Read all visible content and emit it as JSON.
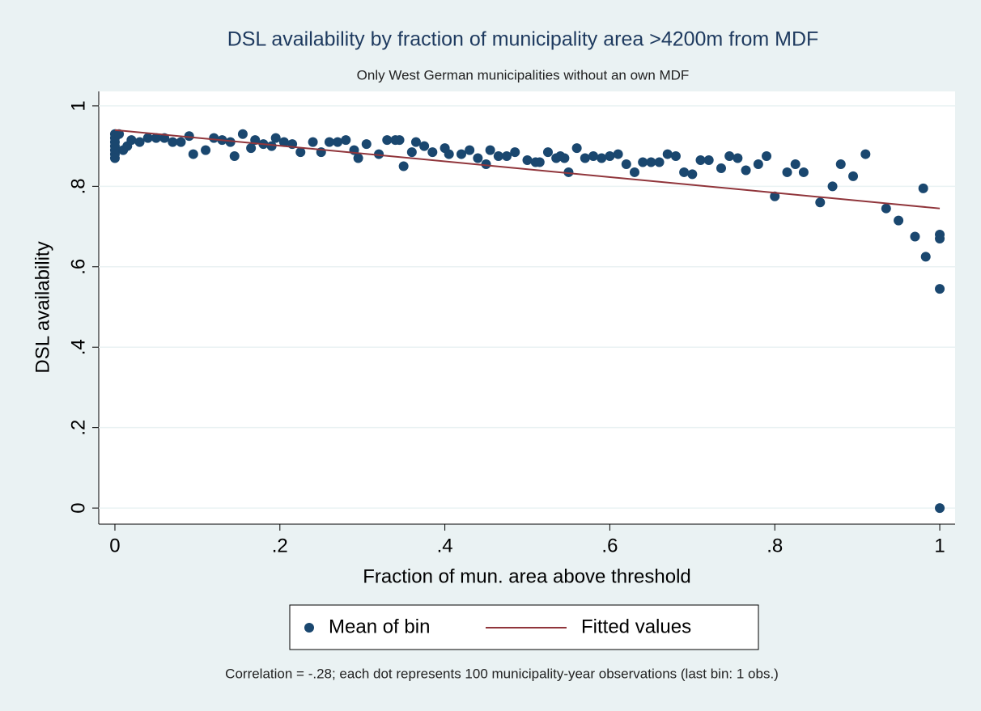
{
  "chart_data": {
    "type": "scatter",
    "title": "DSL availability by fraction of municipality area >4200m from MDF",
    "subtitle": "Only West German municipalities without an own MDF",
    "xlabel": "Fraction of mun. area above threshold",
    "ylabel": "DSL availability",
    "note": "Correlation = -.28; each dot represents 100 municipality-year observations (last bin: 1 obs.)",
    "xlim": [
      -0.0196,
      1.0186
    ],
    "ylim": [
      -0.04,
      1.036
    ],
    "xticks": [
      0,
      {
        "value": 0.2,
        "label": ".2"
      },
      {
        "value": 0.4,
        "label": ".4"
      },
      {
        "value": 0.6,
        "label": ".6"
      },
      {
        "value": 0.8,
        "label": ".8"
      },
      1
    ],
    "yticks": [
      0,
      {
        "value": 0.2,
        "label": ".2"
      },
      {
        "value": 0.4,
        "label": ".4"
      },
      {
        "value": 0.6,
        "label": ".6"
      },
      {
        "value": 0.8,
        "label": ".8"
      },
      1
    ],
    "grid": true,
    "legend": "bottom",
    "series": [
      {
        "name": "Mean of bin",
        "type": "scatter",
        "color": "#1a476f",
        "x": [
          0,
          0,
          0,
          0,
          0,
          0,
          0,
          0.005,
          0.01,
          0.015,
          0.02,
          0.03,
          0.04,
          0.05,
          0.06,
          0.07,
          0.08,
          0.09,
          0.095,
          0.11,
          0.12,
          0.13,
          0.14,
          0.145,
          0.155,
          0.165,
          0.17,
          0.18,
          0.19,
          0.195,
          0.205,
          0.215,
          0.225,
          0.24,
          0.25,
          0.26,
          0.27,
          0.28,
          0.29,
          0.295,
          0.305,
          0.32,
          0.33,
          0.34,
          0.345,
          0.35,
          0.36,
          0.365,
          0.375,
          0.385,
          0.4,
          0.405,
          0.42,
          0.43,
          0.44,
          0.45,
          0.455,
          0.465,
          0.475,
          0.485,
          0.5,
          0.51,
          0.515,
          0.525,
          0.535,
          0.54,
          0.545,
          0.55,
          0.56,
          0.57,
          0.58,
          0.59,
          0.6,
          0.61,
          0.62,
          0.63,
          0.64,
          0.65,
          0.66,
          0.67,
          0.68,
          0.69,
          0.7,
          0.71,
          0.72,
          0.735,
          0.745,
          0.755,
          0.765,
          0.78,
          0.79,
          0.8,
          0.815,
          0.825,
          0.835,
          0.855,
          0.87,
          0.88,
          0.895,
          0.91,
          0.935,
          0.95,
          0.97,
          0.98,
          0.983,
          1,
          1,
          1,
          1
        ],
        "values": [
          0.93,
          0.92,
          0.91,
          0.9,
          0.89,
          0.88,
          0.87,
          0.93,
          0.89,
          0.9,
          0.915,
          0.91,
          0.92,
          0.92,
          0.92,
          0.91,
          0.91,
          0.925,
          0.88,
          0.89,
          0.92,
          0.915,
          0.91,
          0.875,
          0.93,
          0.895,
          0.915,
          0.905,
          0.9,
          0.92,
          0.91,
          0.905,
          0.885,
          0.91,
          0.885,
          0.91,
          0.91,
          0.915,
          0.89,
          0.87,
          0.905,
          0.88,
          0.915,
          0.915,
          0.915,
          0.85,
          0.885,
          0.91,
          0.9,
          0.885,
          0.895,
          0.88,
          0.88,
          0.89,
          0.87,
          0.855,
          0.89,
          0.875,
          0.875,
          0.885,
          0.865,
          0.86,
          0.86,
          0.885,
          0.87,
          0.875,
          0.87,
          0.835,
          0.895,
          0.87,
          0.875,
          0.87,
          0.875,
          0.88,
          0.855,
          0.835,
          0.86,
          0.86,
          0.86,
          0.88,
          0.875,
          0.835,
          0.83,
          0.865,
          0.865,
          0.845,
          0.875,
          0.87,
          0.84,
          0.855,
          0.875,
          0.775,
          0.835,
          0.855,
          0.835,
          0.76,
          0.8,
          0.855,
          0.825,
          0.88,
          0.745,
          0.715,
          0.675,
          0.795,
          0.625,
          0.68,
          0.67,
          0.545,
          0
        ]
      },
      {
        "name": "Fitted values",
        "type": "line",
        "color": "#90353b",
        "x": [
          0,
          1
        ],
        "values": [
          0.94,
          0.745
        ]
      }
    ]
  }
}
